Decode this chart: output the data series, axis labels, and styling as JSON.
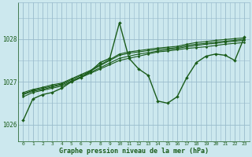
{
  "title": "Graphe pression niveau de la mer (hPa)",
  "bg_color": "#cce8ee",
  "grid_color": "#99bbcc",
  "line_color": "#1a5c1a",
  "xlim": [
    -0.5,
    23.5
  ],
  "ylim": [
    1025.6,
    1028.85
  ],
  "yticks": [
    1026,
    1027,
    1028
  ],
  "xticks": [
    0,
    1,
    2,
    3,
    4,
    5,
    6,
    7,
    8,
    9,
    10,
    11,
    12,
    13,
    14,
    15,
    16,
    17,
    18,
    19,
    20,
    21,
    22,
    23
  ],
  "series": [
    [
      1026.1,
      1026.6,
      1026.7,
      1026.75,
      1026.85,
      1027.0,
      1027.1,
      1027.25,
      1027.45,
      1027.55,
      1028.38,
      1027.55,
      1027.3,
      1027.15,
      1026.55,
      1026.5,
      1026.65,
      1027.1,
      1027.45,
      1027.6,
      1027.65,
      1027.62,
      1027.5,
      1028.05
    ],
    [
      1026.65,
      1026.75,
      1026.8,
      1026.85,
      1026.9,
      1027.0,
      1027.1,
      1027.2,
      1027.3,
      1027.4,
      1027.5,
      1027.55,
      1027.6,
      1027.65,
      1027.7,
      1027.72,
      1027.75,
      1027.78,
      1027.8,
      1027.82,
      1027.85,
      1027.88,
      1027.9,
      1027.92
    ],
    [
      1026.7,
      1026.78,
      1026.82,
      1026.88,
      1026.93,
      1027.02,
      1027.12,
      1027.22,
      1027.33,
      1027.44,
      1027.55,
      1027.6,
      1027.65,
      1027.68,
      1027.72,
      1027.75,
      1027.78,
      1027.82,
      1027.85,
      1027.88,
      1027.9,
      1027.93,
      1027.95,
      1027.97
    ],
    [
      1026.72,
      1026.8,
      1026.85,
      1026.9,
      1026.95,
      1027.05,
      1027.15,
      1027.25,
      1027.38,
      1027.5,
      1027.62,
      1027.67,
      1027.7,
      1027.73,
      1027.76,
      1027.78,
      1027.8,
      1027.85,
      1027.88,
      1027.9,
      1027.93,
      1027.95,
      1027.97,
      1028.0
    ],
    [
      1026.75,
      1026.82,
      1026.87,
      1026.93,
      1026.97,
      1027.07,
      1027.17,
      1027.27,
      1027.4,
      1027.52,
      1027.65,
      1027.7,
      1027.73,
      1027.76,
      1027.79,
      1027.81,
      1027.83,
      1027.88,
      1027.92,
      1027.94,
      1027.97,
      1027.99,
      1028.01,
      1028.03
    ]
  ],
  "series_lw": [
    1.0,
    0.8,
    0.8,
    0.8,
    0.8
  ],
  "series_marker": [
    "D",
    "D",
    "D",
    "D",
    "D"
  ],
  "series_markersize": [
    2.0,
    1.5,
    1.5,
    1.5,
    1.5
  ]
}
